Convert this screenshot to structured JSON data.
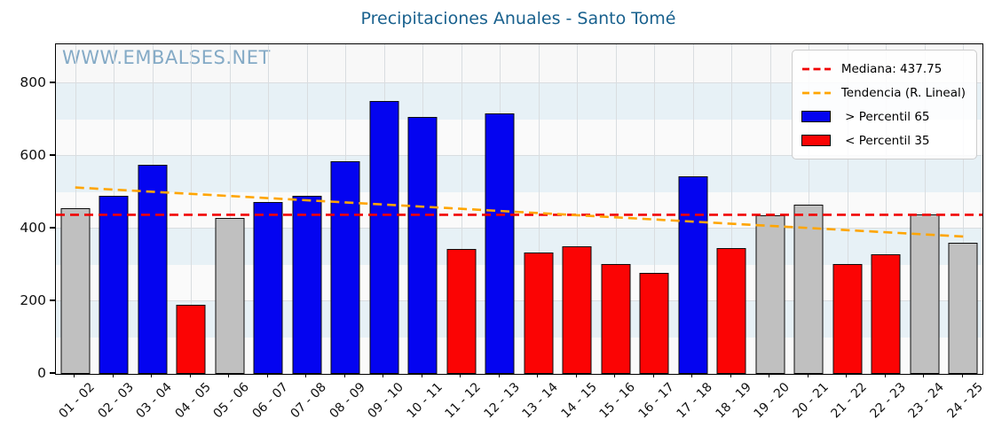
{
  "chart_data": {
    "type": "bar",
    "title": "Precipitaciones Anuales - Santo Tomé",
    "watermark": "WWW.EMBALSES.NET",
    "xlabel": "",
    "ylabel": "",
    "categories": [
      "01 - 02",
      "02 - 03",
      "03 - 04",
      "04 - 05",
      "05 - 06",
      "06 - 07",
      "07 - 08",
      "08 - 09",
      "09 - 10",
      "10 - 11",
      "11 - 12",
      "12 - 13",
      "13 - 14",
      "14 - 15",
      "15 - 16",
      "16 - 17",
      "17 - 18",
      "18 - 19",
      "19 - 20",
      "20 - 21",
      "21 - 22",
      "22 - 23",
      "23 - 24",
      "24 - 25"
    ],
    "values": [
      456,
      490,
      575,
      190,
      428,
      472,
      490,
      585,
      752,
      708,
      345,
      718,
      335,
      350,
      303,
      277,
      543,
      347,
      435.5,
      465,
      303,
      330,
      440,
      360
    ],
    "percentile_class": [
      "mid",
      "above",
      "above",
      "below",
      "mid",
      "above",
      "above",
      "above",
      "above",
      "above",
      "below",
      "above",
      "below",
      "below",
      "below",
      "below",
      "above",
      "below",
      "mid",
      "mid",
      "below",
      "below",
      "mid",
      "mid"
    ],
    "median": 437.75,
    "trend": {
      "start_value": 513,
      "end_value": 378
    },
    "ylim": [
      0,
      907
    ],
    "yticks": [
      0,
      200,
      400,
      600,
      800
    ],
    "grid": true,
    "legend_position": "upper right",
    "legend": {
      "median": "Mediana: 437.75",
      "trend": "Tendencia (R. Lineal)",
      "above": " > Percentil 65",
      "below": " < Percentil 35"
    },
    "colors": {
      "above": "#0404f0",
      "below": "#fb0404",
      "mid": "#c0c0c0",
      "bar_edge": "#0c0c0c",
      "median_line": "#f10000",
      "trend_line": "#ffa500",
      "title": "#19618e",
      "watermark": "#78a2c1"
    }
  }
}
